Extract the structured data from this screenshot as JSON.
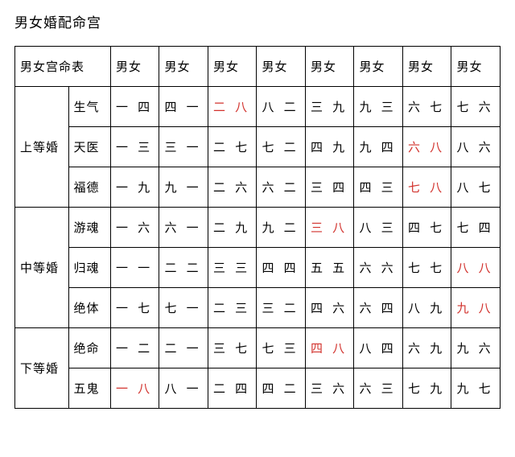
{
  "page_title": "男女婚配命宫",
  "header": {
    "corner": "男女宫命表",
    "col_labels": [
      "男女",
      "男女",
      "男女",
      "男女",
      "男女",
      "男女",
      "男女",
      "男女"
    ]
  },
  "colors": {
    "highlight": "#d2322d",
    "text": "#000000",
    "bg": "#ffffff",
    "border": "#000000"
  },
  "grades": [
    {
      "grade": "上等婚",
      "rows": [
        {
          "label": "生气",
          "cells": [
            {
              "t": "一 四",
              "r": false
            },
            {
              "t": "四 一",
              "r": false
            },
            {
              "t": "二 八",
              "r": true
            },
            {
              "t": "八 二",
              "r": false
            },
            {
              "t": "三 九",
              "r": false
            },
            {
              "t": "九 三",
              "r": false
            },
            {
              "t": "六 七",
              "r": false
            },
            {
              "t": "七 六",
              "r": false
            }
          ]
        },
        {
          "label": "天医",
          "cells": [
            {
              "t": "一 三",
              "r": false
            },
            {
              "t": "三 一",
              "r": false
            },
            {
              "t": "二 七",
              "r": false
            },
            {
              "t": "七 二",
              "r": false
            },
            {
              "t": "四 九",
              "r": false
            },
            {
              "t": "九 四",
              "r": false
            },
            {
              "t": "六 八",
              "r": true
            },
            {
              "t": "八 六",
              "r": false
            }
          ]
        },
        {
          "label": "福德",
          "cells": [
            {
              "t": "一 九",
              "r": false
            },
            {
              "t": "九 一",
              "r": false
            },
            {
              "t": "二 六",
              "r": false
            },
            {
              "t": "六 二",
              "r": false
            },
            {
              "t": "三 四",
              "r": false
            },
            {
              "t": "四 三",
              "r": false
            },
            {
              "t": "七 八",
              "r": true
            },
            {
              "t": "八 七",
              "r": false
            }
          ]
        }
      ]
    },
    {
      "grade": "中等婚",
      "rows": [
        {
          "label": "游魂",
          "cells": [
            {
              "t": "一 六",
              "r": false
            },
            {
              "t": "六 一",
              "r": false
            },
            {
              "t": "二 九",
              "r": false
            },
            {
              "t": "九 二",
              "r": false
            },
            {
              "t": "三 八",
              "r": true
            },
            {
              "t": "八 三",
              "r": false
            },
            {
              "t": "四 七",
              "r": false
            },
            {
              "t": "七 四",
              "r": false
            }
          ]
        },
        {
          "label": "归魂",
          "cells": [
            {
              "t": "一 一",
              "r": false
            },
            {
              "t": "二 二",
              "r": false
            },
            {
              "t": "三 三",
              "r": false
            },
            {
              "t": "四 四",
              "r": false
            },
            {
              "t": "五 五",
              "r": false
            },
            {
              "t": "六 六",
              "r": false
            },
            {
              "t": "七 七",
              "r": false
            },
            {
              "t": "八 八",
              "r": true
            }
          ]
        },
        {
          "label": "绝体",
          "cells": [
            {
              "t": "一 七",
              "r": false
            },
            {
              "t": "七 一",
              "r": false
            },
            {
              "t": "二 三",
              "r": false
            },
            {
              "t": "三 二",
              "r": false
            },
            {
              "t": "四 六",
              "r": false
            },
            {
              "t": "六 四",
              "r": false
            },
            {
              "t": "八 九",
              "r": false
            },
            {
              "t": "九 八",
              "r": true
            }
          ]
        }
      ]
    },
    {
      "grade": "下等婚",
      "rows": [
        {
          "label": "绝命",
          "cells": [
            {
              "t": "一 二",
              "r": false
            },
            {
              "t": "二 一",
              "r": false
            },
            {
              "t": "三 七",
              "r": false
            },
            {
              "t": "七 三",
              "r": false
            },
            {
              "t": "四 八",
              "r": true
            },
            {
              "t": "八 四",
              "r": false
            },
            {
              "t": "六 九",
              "r": false
            },
            {
              "t": "九 六",
              "r": false
            }
          ]
        },
        {
          "label": "五鬼",
          "cells": [
            {
              "t": "一 八",
              "r": true
            },
            {
              "t": "八 一",
              "r": false
            },
            {
              "t": "二 四",
              "r": false
            },
            {
              "t": "四 二",
              "r": false
            },
            {
              "t": "三 六",
              "r": false
            },
            {
              "t": "六 三",
              "r": false
            },
            {
              "t": "七 九",
              "r": false
            },
            {
              "t": "九 七",
              "r": false
            }
          ]
        }
      ]
    }
  ]
}
